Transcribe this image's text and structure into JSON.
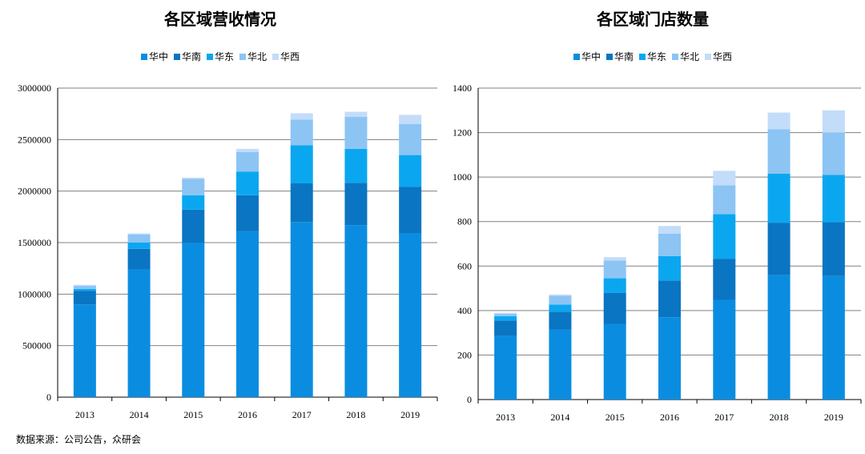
{
  "source_note": "数据来源：公司公告，众研会",
  "colors": {
    "华中": "#0a8de0",
    "华南": "#0a75c2",
    "华东": "#0aa7f0",
    "华北": "#8cc4f4",
    "华西": "#c3dcf9",
    "grid": "#808080",
    "axis": "#000000"
  },
  "chart_data": [
    {
      "type": "bar",
      "stacked": true,
      "title": "各区域营收情况",
      "legend_position": "top",
      "categories": [
        "2013",
        "2014",
        "2015",
        "2016",
        "2017",
        "2018",
        "2019"
      ],
      "ylim": [
        0,
        3000000
      ],
      "yticks": [
        0,
        500000,
        1000000,
        1500000,
        2000000,
        2500000,
        3000000
      ],
      "ytick_labels": [
        "0",
        "500000",
        "1000000",
        "1500000",
        "2000000",
        "2500000",
        "3000000"
      ],
      "grid": true,
      "series": [
        {
          "name": "华中",
          "values": [
            900000,
            1240000,
            1500000,
            1610000,
            1700000,
            1670000,
            1590000
          ]
        },
        {
          "name": "华南",
          "values": [
            130000,
            200000,
            320000,
            350000,
            375000,
            410000,
            450000
          ]
        },
        {
          "name": "华东",
          "values": [
            20000,
            60000,
            140000,
            230000,
            370000,
            330000,
            310000
          ]
        },
        {
          "name": "华北",
          "values": [
            30000,
            80000,
            160000,
            190000,
            250000,
            310000,
            300000
          ]
        },
        {
          "name": "华西",
          "values": [
            10000,
            10000,
            10000,
            30000,
            60000,
            50000,
            90000
          ]
        }
      ]
    },
    {
      "type": "bar",
      "stacked": true,
      "title": "各区域门店数量",
      "legend_position": "top",
      "categories": [
        "2013",
        "2014",
        "2015",
        "2016",
        "2017",
        "2018",
        "2019"
      ],
      "ylim": [
        0,
        1400
      ],
      "yticks": [
        0,
        200,
        400,
        600,
        800,
        1000,
        1200,
        1400
      ],
      "ytick_labels": [
        "0",
        "200",
        "400",
        "600",
        "800",
        "1000",
        "1200",
        "1400"
      ],
      "grid": true,
      "series": [
        {
          "name": "华中",
          "values": [
            285,
            315,
            340,
            370,
            448,
            560,
            555
          ]
        },
        {
          "name": "华南",
          "values": [
            70,
            80,
            140,
            165,
            185,
            235,
            242
          ]
        },
        {
          "name": "华东",
          "values": [
            20,
            32,
            65,
            110,
            200,
            220,
            213
          ]
        },
        {
          "name": "华北",
          "values": [
            10,
            40,
            80,
            100,
            130,
            200,
            190
          ]
        },
        {
          "name": "华西",
          "values": [
            5,
            5,
            15,
            35,
            65,
            75,
            100
          ]
        }
      ]
    }
  ]
}
